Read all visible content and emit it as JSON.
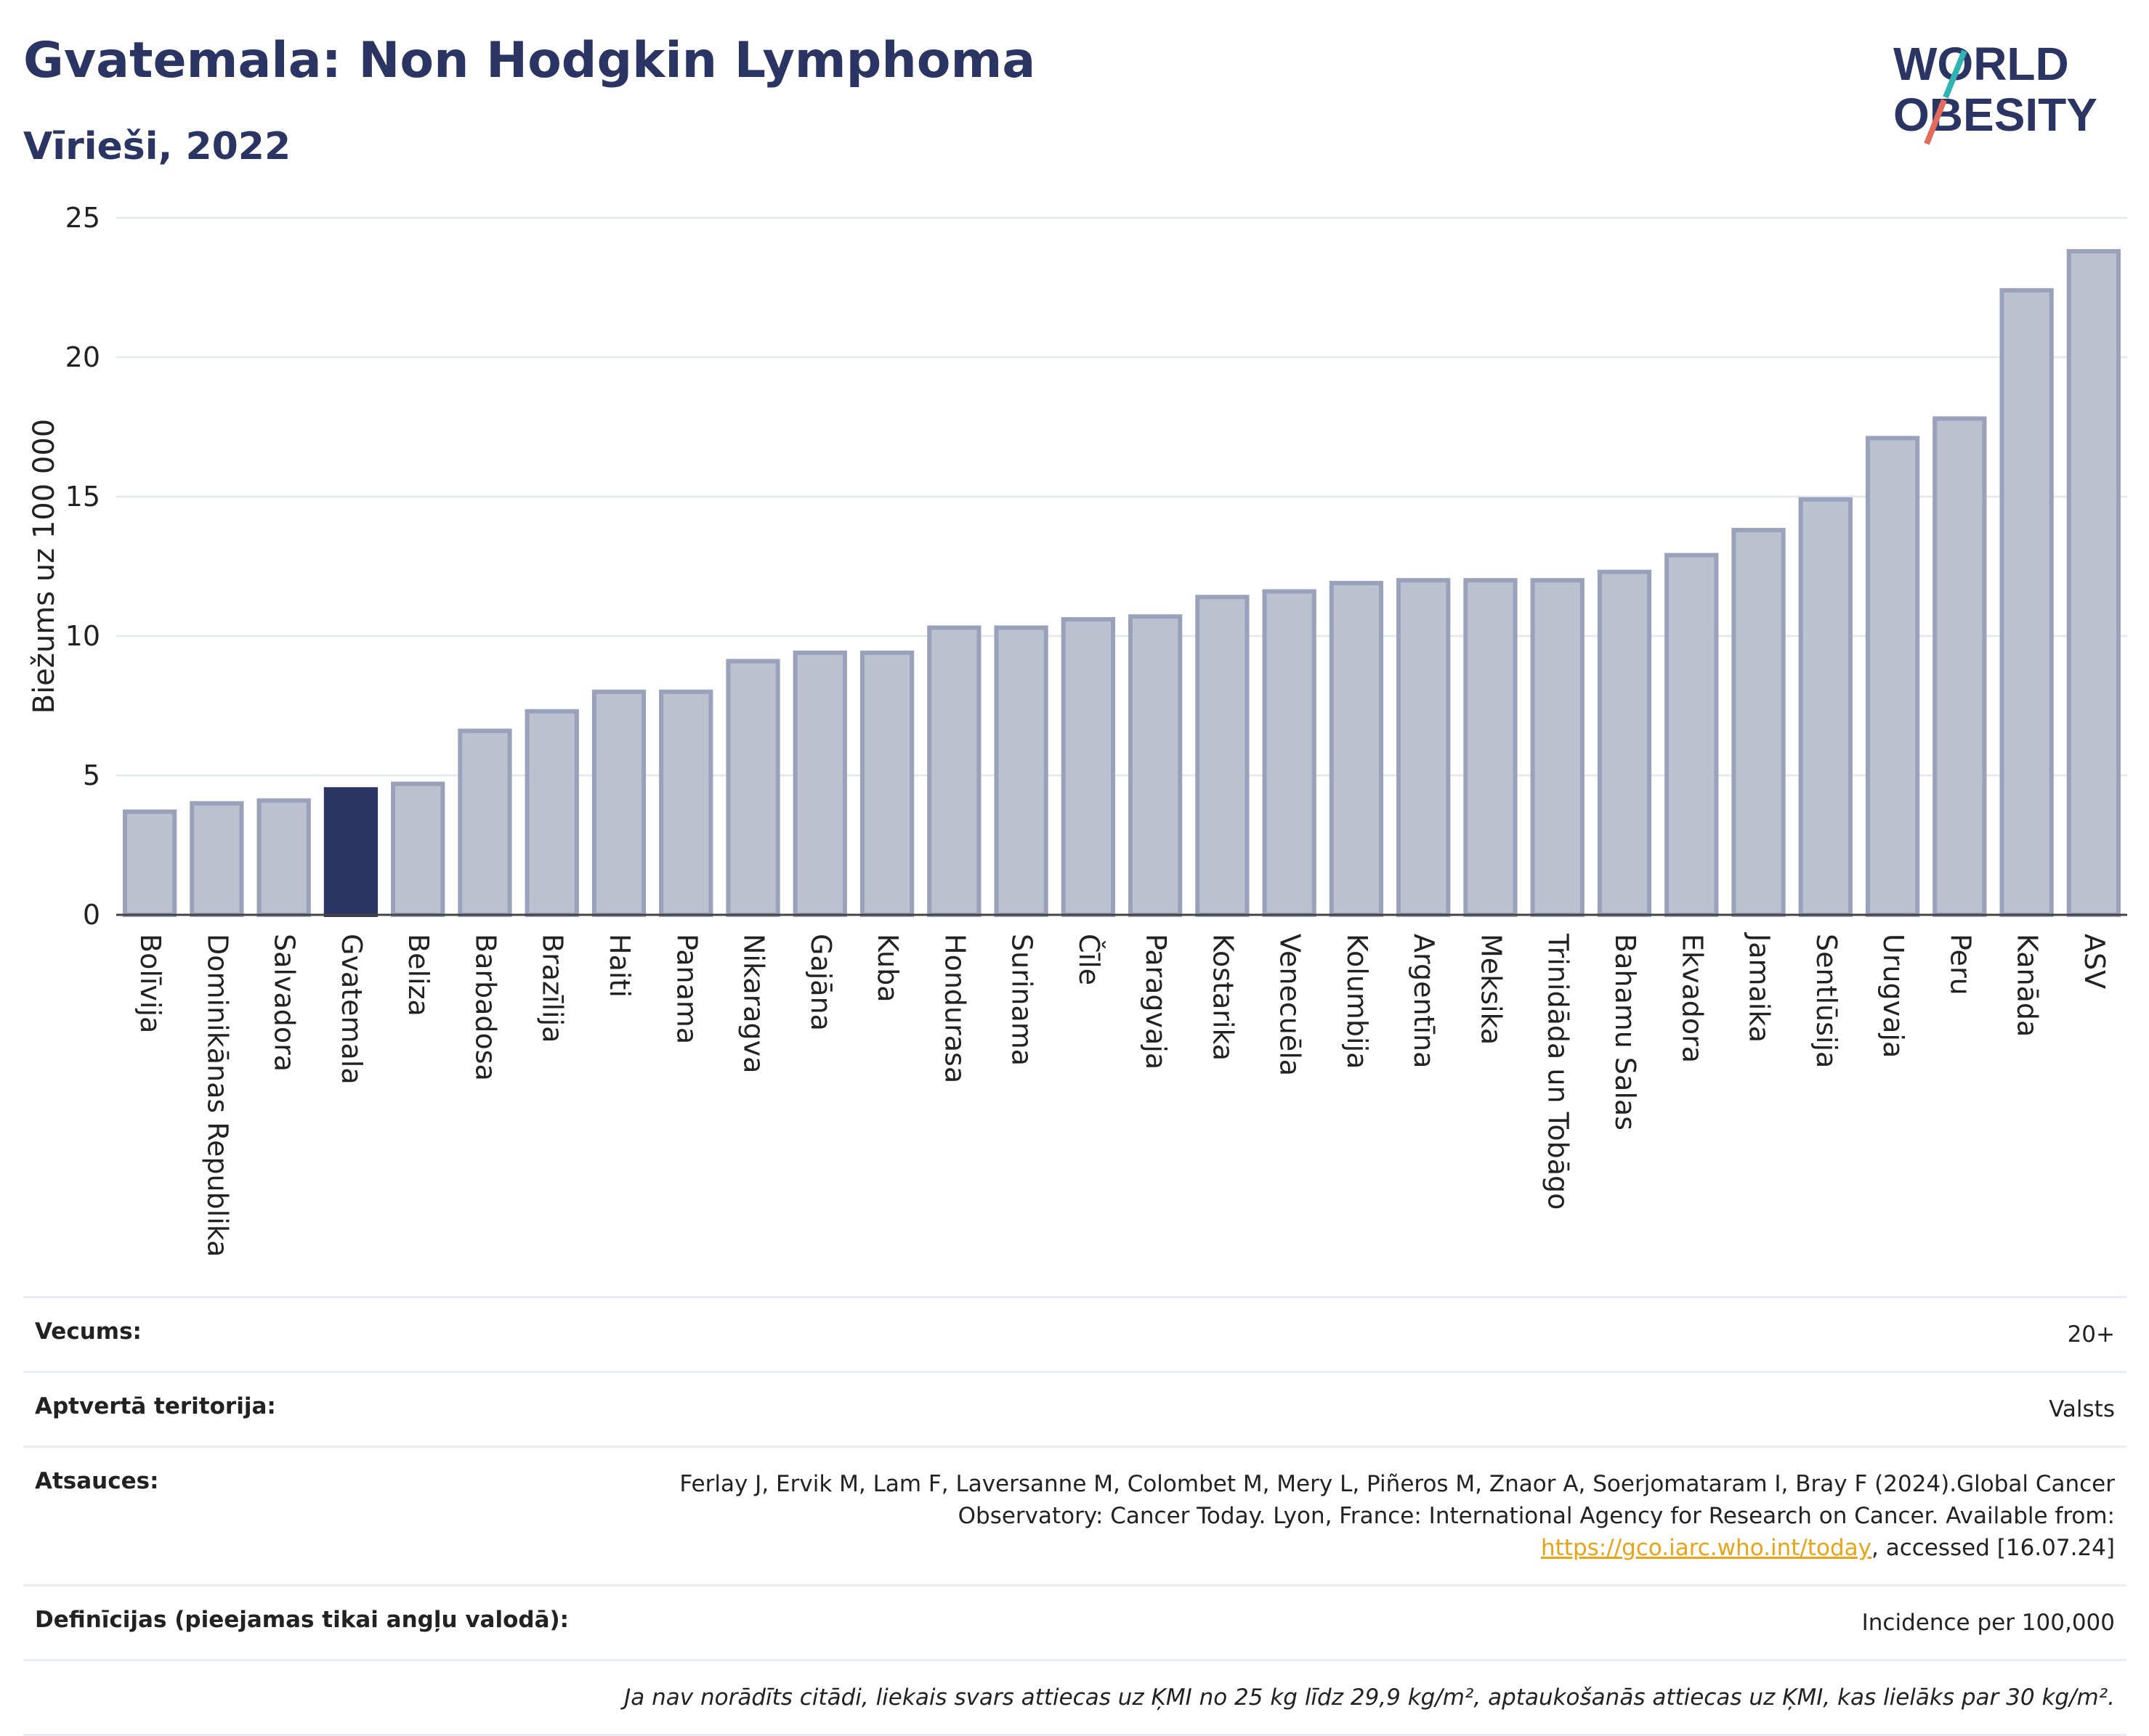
{
  "header": {
    "title": "Gvatemala: Non Hodgkin Lymphoma",
    "subtitle": "Vīrieši, 2022"
  },
  "logo": {
    "line1": "WORLD",
    "line2": "OBESITY"
  },
  "chart_data": {
    "type": "bar",
    "ylabel": "Biežums uz 100 000",
    "xlabel": "",
    "ylim": [
      0,
      25
    ],
    "yticks": [
      0,
      5,
      10,
      15,
      20,
      25
    ],
    "grid": true,
    "highlight": "Gvatemala",
    "colors": {
      "bar": "#bcc1d0",
      "bar_edge": "#9aa1bb",
      "highlight": "#2b3563"
    },
    "categories": [
      "Bolīvija",
      "Dominikānas Republika",
      "Salvadora",
      "Gvatemala",
      "Beliza",
      "Barbadosa",
      "Brazīlija",
      "Haiti",
      "Panama",
      "Nikaragva",
      "Gajāna",
      "Kuba",
      "Hondurasa",
      "Surinama",
      "Čīle",
      "Paragvaja",
      "Kostarika",
      "Venecuēla",
      "Kolumbija",
      "Argentīna",
      "Meksika",
      "Trinidāda un Tobāgo",
      "Bahamu Salas",
      "Ekvadora",
      "Jamaika",
      "Sentlūsija",
      "Urugvaja",
      "Peru",
      "Kanāda",
      "ASV"
    ],
    "values": [
      3.7,
      4.0,
      4.1,
      4.5,
      4.7,
      6.6,
      7.3,
      8.0,
      8.0,
      9.1,
      9.4,
      9.4,
      10.3,
      10.3,
      10.6,
      10.7,
      11.4,
      11.6,
      11.9,
      12.0,
      12.0,
      12.0,
      12.3,
      12.9,
      13.8,
      14.9,
      17.1,
      17.8,
      22.4,
      23.8
    ]
  },
  "info": {
    "age_label": "Vecums:",
    "age_value": "20+",
    "territory_label": "Aptvertā teritorija:",
    "territory_value": "Valsts",
    "refs_label": "Atsauces:",
    "refs_text": "Ferlay J, Ervik M, Lam F, Laversanne M, Colombet M, Mery L, Piñeros M, Znaor A, Soerjomataram I, Bray F (2024).Global Cancer Observatory: Cancer Today. Lyon, France: International Agency for Research on Cancer. Available from: ",
    "refs_link": "https://gco.iarc.who.int/today",
    "refs_tail": ", accessed [16.07.24]",
    "defs_label": "Definīcijas (pieejamas tikai angļu valodā):",
    "defs_value": "Incidence per 100,000",
    "note": "Ja nav norādīts citādi, liekais svars attiecas uz ĶMI no 25 kg līdz 29,9 kg/m², aptaukošanās attiecas uz ĶMI, kas lielāks par 30 kg/m²."
  }
}
